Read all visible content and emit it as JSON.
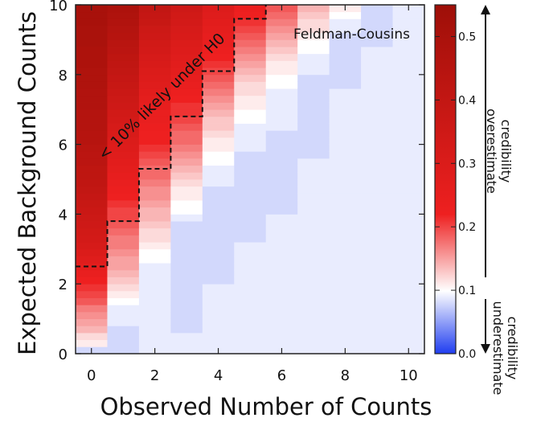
{
  "chart_data": {
    "type": "heatmap",
    "title": "",
    "annotation_label": "Feldman-Cousins",
    "region_label": "< 10% likely under H0",
    "xlabel": "Observed Number of Counts",
    "ylabel": "Expected Background Counts",
    "x_range": [
      -0.5,
      10.5
    ],
    "y_range": [
      0,
      10
    ],
    "x_ticks": [
      "0",
      "2",
      "4",
      "6",
      "8",
      "10"
    ],
    "y_ticks": [
      "0",
      "2",
      "4",
      "6",
      "8",
      "10"
    ],
    "x_tick_values": [
      0,
      2,
      4,
      6,
      8,
      10
    ],
    "y_tick_values": [
      0,
      2,
      4,
      6,
      8,
      10
    ],
    "colorbar": {
      "range": [
        0.0,
        0.55
      ],
      "ticks": [
        "0.0",
        "0.1",
        "0.2",
        "0.3",
        "0.4",
        "0.5"
      ],
      "tick_values": [
        0.0,
        0.1,
        0.2,
        0.3,
        0.4,
        0.5
      ],
      "colors": [
        "#1f3df0",
        "#ffffff",
        "#ee2020",
        "#9e0f08"
      ],
      "label_upper": [
        "credibility",
        "overestimate"
      ],
      "label_lower": [
        "credibility",
        "underestimate"
      ]
    },
    "x_values": [
      0,
      1,
      2,
      3,
      4,
      5,
      6,
      7,
      8,
      9,
      10
    ],
    "y_bin_width": 0.2,
    "boundary_x_edges": [
      -0.5,
      0.5,
      1.5,
      2.5,
      3.5,
      4.5,
      5.5
    ],
    "boundary_y": [
      2.5,
      3.8,
      5.3,
      6.8,
      8.1,
      9.6
    ]
  },
  "grid": {
    "note": "value per observed count column at y = 0.1, 0.3, ..., 9.9",
    "columns": [
      [
        0.08,
        0.11,
        0.12,
        0.14,
        0.15,
        0.16,
        0.17,
        0.19,
        0.2,
        0.21,
        0.22,
        0.24,
        0.26,
        0.28,
        0.3,
        0.32,
        0.33,
        0.34,
        0.35,
        0.36,
        0.37,
        0.38,
        0.39,
        0.4,
        0.41,
        0.42,
        0.42,
        0.43,
        0.43,
        0.44,
        0.45,
        0.45,
        0.46,
        0.46,
        0.46,
        0.47,
        0.47,
        0.47,
        0.48,
        0.48,
        0.48,
        0.49,
        0.49,
        0.49,
        0.5,
        0.5,
        0.5,
        0.51,
        0.51,
        0.51
      ],
      [
        0.08,
        0.08,
        0.08,
        0.08,
        0.09,
        0.09,
        0.09,
        0.1,
        0.11,
        0.12,
        0.13,
        0.14,
        0.15,
        0.15,
        0.16,
        0.17,
        0.17,
        0.18,
        0.19,
        0.2,
        0.2,
        0.21,
        0.22,
        0.23,
        0.24,
        0.25,
        0.26,
        0.27,
        0.28,
        0.29,
        0.3,
        0.31,
        0.32,
        0.33,
        0.34,
        0.35,
        0.36,
        0.37,
        0.38,
        0.39,
        0.4,
        0.41,
        0.42,
        0.43,
        0.44,
        0.45,
        0.46,
        0.47,
        0.48,
        0.49
      ],
      [
        0.09,
        0.09,
        0.09,
        0.09,
        0.09,
        0.09,
        0.09,
        0.09,
        0.09,
        0.09,
        0.09,
        0.09,
        0.09,
        0.1,
        0.1,
        0.11,
        0.12,
        0.12,
        0.13,
        0.14,
        0.14,
        0.15,
        0.16,
        0.16,
        0.17,
        0.18,
        0.18,
        0.19,
        0.2,
        0.21,
        0.22,
        0.22,
        0.23,
        0.24,
        0.24,
        0.25,
        0.26,
        0.27,
        0.28,
        0.29,
        0.3,
        0.31,
        0.32,
        0.33,
        0.34,
        0.35,
        0.36,
        0.38,
        0.39,
        0.4
      ],
      [
        0.09,
        0.09,
        0.09,
        0.08,
        0.08,
        0.08,
        0.08,
        0.08,
        0.08,
        0.08,
        0.08,
        0.08,
        0.08,
        0.08,
        0.08,
        0.08,
        0.08,
        0.08,
        0.08,
        0.09,
        0.1,
        0.1,
        0.11,
        0.11,
        0.12,
        0.13,
        0.14,
        0.15,
        0.16,
        0.17,
        0.18,
        0.18,
        0.19,
        0.2,
        0.21,
        0.21,
        0.22,
        0.23,
        0.24,
        0.25,
        0.26,
        0.27,
        0.28,
        0.29,
        0.3,
        0.31,
        0.32,
        0.33,
        0.34,
        0.35
      ],
      [
        0.09,
        0.09,
        0.09,
        0.09,
        0.09,
        0.09,
        0.09,
        0.09,
        0.09,
        0.09,
        0.08,
        0.08,
        0.08,
        0.08,
        0.08,
        0.08,
        0.08,
        0.08,
        0.08,
        0.08,
        0.08,
        0.08,
        0.08,
        0.08,
        0.09,
        0.09,
        0.09,
        0.1,
        0.1,
        0.11,
        0.11,
        0.12,
        0.13,
        0.13,
        0.14,
        0.15,
        0.16,
        0.17,
        0.18,
        0.19,
        0.2,
        0.21,
        0.22,
        0.23,
        0.24,
        0.25,
        0.26,
        0.27,
        0.28,
        0.29
      ],
      [
        0.09,
        0.09,
        0.09,
        0.09,
        0.09,
        0.09,
        0.09,
        0.09,
        0.09,
        0.09,
        0.09,
        0.09,
        0.09,
        0.09,
        0.09,
        0.09,
        0.08,
        0.08,
        0.08,
        0.08,
        0.08,
        0.08,
        0.08,
        0.08,
        0.08,
        0.08,
        0.08,
        0.08,
        0.08,
        0.09,
        0.09,
        0.09,
        0.09,
        0.1,
        0.1,
        0.11,
        0.11,
        0.12,
        0.12,
        0.13,
        0.14,
        0.15,
        0.16,
        0.17,
        0.18,
        0.19,
        0.2,
        0.21,
        0.22,
        0.23
      ],
      [
        0.09,
        0.09,
        0.09,
        0.09,
        0.09,
        0.09,
        0.09,
        0.09,
        0.09,
        0.09,
        0.09,
        0.09,
        0.09,
        0.09,
        0.09,
        0.09,
        0.09,
        0.09,
        0.09,
        0.09,
        0.08,
        0.08,
        0.08,
        0.08,
        0.08,
        0.08,
        0.08,
        0.08,
        0.08,
        0.08,
        0.08,
        0.08,
        0.09,
        0.09,
        0.09,
        0.09,
        0.09,
        0.09,
        0.1,
        0.1,
        0.11,
        0.11,
        0.12,
        0.13,
        0.14,
        0.15,
        0.16,
        0.17,
        0.18,
        0.19
      ],
      [
        0.09,
        0.09,
        0.09,
        0.09,
        0.09,
        0.09,
        0.09,
        0.09,
        0.09,
        0.09,
        0.09,
        0.09,
        0.09,
        0.09,
        0.09,
        0.09,
        0.09,
        0.09,
        0.09,
        0.09,
        0.09,
        0.09,
        0.09,
        0.09,
        0.09,
        0.09,
        0.09,
        0.09,
        0.08,
        0.08,
        0.08,
        0.08,
        0.08,
        0.08,
        0.08,
        0.08,
        0.08,
        0.08,
        0.08,
        0.08,
        0.09,
        0.09,
        0.09,
        0.1,
        0.1,
        0.11,
        0.12,
        0.12,
        0.13,
        0.14
      ],
      [
        0.09,
        0.09,
        0.09,
        0.09,
        0.09,
        0.09,
        0.09,
        0.09,
        0.09,
        0.09,
        0.09,
        0.09,
        0.09,
        0.09,
        0.09,
        0.09,
        0.09,
        0.09,
        0.09,
        0.09,
        0.09,
        0.09,
        0.09,
        0.09,
        0.09,
        0.09,
        0.09,
        0.09,
        0.09,
        0.09,
        0.09,
        0.09,
        0.09,
        0.09,
        0.09,
        0.09,
        0.09,
        0.09,
        0.08,
        0.08,
        0.08,
        0.08,
        0.08,
        0.08,
        0.08,
        0.08,
        0.09,
        0.09,
        0.1,
        0.11
      ],
      [
        0.09,
        0.09,
        0.09,
        0.09,
        0.09,
        0.09,
        0.09,
        0.09,
        0.09,
        0.09,
        0.09,
        0.09,
        0.09,
        0.09,
        0.09,
        0.09,
        0.09,
        0.09,
        0.09,
        0.09,
        0.09,
        0.09,
        0.09,
        0.09,
        0.09,
        0.09,
        0.09,
        0.09,
        0.09,
        0.09,
        0.09,
        0.09,
        0.09,
        0.09,
        0.09,
        0.09,
        0.09,
        0.09,
        0.09,
        0.09,
        0.09,
        0.09,
        0.09,
        0.09,
        0.08,
        0.08,
        0.08,
        0.08,
        0.08,
        0.08
      ],
      [
        0.09,
        0.09,
        0.09,
        0.09,
        0.09,
        0.09,
        0.09,
        0.09,
        0.09,
        0.09,
        0.09,
        0.09,
        0.09,
        0.09,
        0.09,
        0.09,
        0.09,
        0.09,
        0.09,
        0.09,
        0.09,
        0.09,
        0.09,
        0.09,
        0.09,
        0.09,
        0.09,
        0.09,
        0.09,
        0.09,
        0.09,
        0.09,
        0.09,
        0.09,
        0.09,
        0.09,
        0.09,
        0.09,
        0.09,
        0.09,
        0.09,
        0.09,
        0.09,
        0.09,
        0.09,
        0.09,
        0.09,
        0.09,
        0.09,
        0.09
      ]
    ]
  }
}
